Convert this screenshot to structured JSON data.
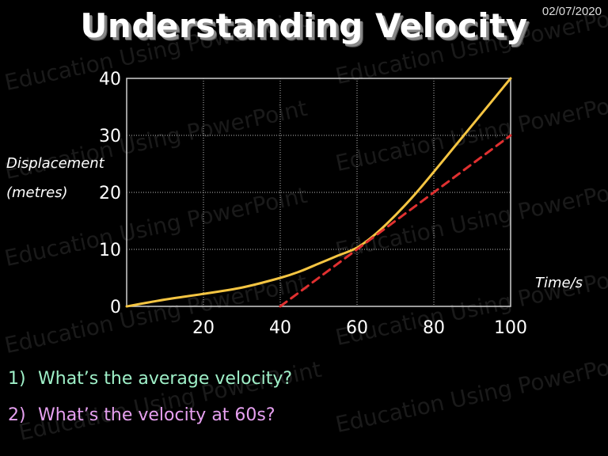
{
  "slide": {
    "title": "Understanding Velocity",
    "date": "02/07/2020",
    "watermark": "Education Using PowerPoint"
  },
  "chart_data": {
    "type": "line",
    "ylabel_lines": [
      "Displacement",
      "(metres)"
    ],
    "xlabel": "Time/s",
    "xlim": [
      0,
      100
    ],
    "ylim": [
      0,
      40
    ],
    "x_ticks": [
      20,
      40,
      60,
      80,
      100
    ],
    "y_ticks": [
      0,
      10,
      20,
      30,
      40
    ],
    "grid": true,
    "series": [
      {
        "style": "solid",
        "color": "#f5c542",
        "x": [
          0,
          10,
          20,
          30,
          40,
          45,
          50,
          55,
          60,
          65,
          70,
          75,
          80,
          85,
          90,
          95,
          100
        ],
        "y": [
          0,
          1.2,
          2.2,
          3.3,
          5,
          6.1,
          7.5,
          8.9,
          10.3,
          12.8,
          16,
          19.6,
          23.6,
          27.7,
          31.8,
          35.9,
          40
        ]
      },
      {
        "style": "dashed",
        "color": "#e03030",
        "x": [
          40,
          100
        ],
        "y": [
          0,
          30
        ]
      }
    ]
  },
  "questions": [
    {
      "num": "1)",
      "text": "What’s the average velocity?",
      "color": "#9ff0c8"
    },
    {
      "num": "2)",
      "text": "What’s the velocity at 60s?",
      "color": "#e6a0f0"
    }
  ]
}
